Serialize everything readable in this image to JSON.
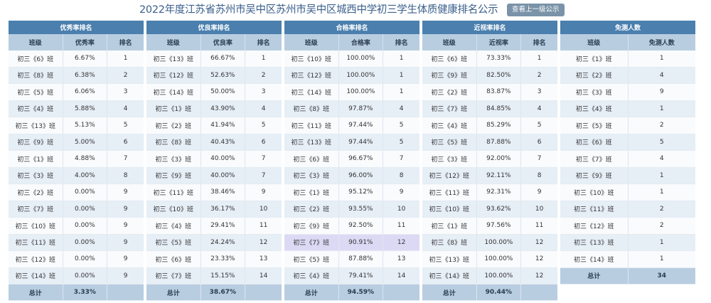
{
  "title": "2022年度江苏省苏州市吴中区苏州市吴中区城西中学初三学生体质健康排名公示",
  "up_button": "查看上一级公示",
  "panels": [
    {
      "title": "优秀率排名",
      "columns": [
        "班级",
        "优秀率",
        "排名"
      ],
      "rows": [
        [
          "初三《6》班",
          "6.67%",
          "1"
        ],
        [
          "初三《8》班",
          "6.38%",
          "2"
        ],
        [
          "初三《5》班",
          "6.06%",
          "3"
        ],
        [
          "初三《4》班",
          "5.88%",
          "4"
        ],
        [
          "初三《13》班",
          "5.13%",
          "5"
        ],
        [
          "初三《9》班",
          "5.00%",
          "6"
        ],
        [
          "初三《1》班",
          "4.88%",
          "7"
        ],
        [
          "初三《3》班",
          "4.00%",
          "8"
        ],
        [
          "初三《2》班",
          "0.00%",
          "9"
        ],
        [
          "初三《7》班",
          "0.00%",
          "9"
        ],
        [
          "初三《10》班",
          "0.00%",
          "9"
        ],
        [
          "初三《11》班",
          "0.00%",
          "9"
        ],
        [
          "初三《12》班",
          "0.00%",
          "9"
        ],
        [
          "初三《14》班",
          "0.00%",
          "9"
        ]
      ],
      "total": [
        "总计",
        "3.33%",
        ""
      ]
    },
    {
      "title": "优良率排名",
      "columns": [
        "班级",
        "优良率",
        "排名"
      ],
      "rows": [
        [
          "初三《13》班",
          "66.67%",
          "1"
        ],
        [
          "初三《12》班",
          "52.63%",
          "2"
        ],
        [
          "初三《14》班",
          "50.00%",
          "3"
        ],
        [
          "初三《1》班",
          "43.90%",
          "4"
        ],
        [
          "初三《2》班",
          "41.94%",
          "5"
        ],
        [
          "初三《8》班",
          "40.43%",
          "6"
        ],
        [
          "初三《3》班",
          "40.00%",
          "7"
        ],
        [
          "初三《9》班",
          "40.00%",
          "7"
        ],
        [
          "初三《11》班",
          "38.46%",
          "9"
        ],
        [
          "初三《10》班",
          "36.17%",
          "10"
        ],
        [
          "初三《4》班",
          "29.41%",
          "11"
        ],
        [
          "初三《5》班",
          "24.24%",
          "12"
        ],
        [
          "初三《6》班",
          "23.33%",
          "13"
        ],
        [
          "初三《7》班",
          "15.15%",
          "14"
        ]
      ],
      "total": [
        "总计",
        "38.67%",
        ""
      ]
    },
    {
      "title": "合格率排名",
      "columns": [
        "班级",
        "合格率",
        "排名"
      ],
      "rows": [
        [
          "初三《10》班",
          "100.00%",
          "1"
        ],
        [
          "初三《12》班",
          "100.00%",
          "1"
        ],
        [
          "初三《14》班",
          "100.00%",
          "1"
        ],
        [
          "初三《8》班",
          "97.87%",
          "4"
        ],
        [
          "初三《11》班",
          "97.44%",
          "5"
        ],
        [
          "初三《13》班",
          "97.44%",
          "5"
        ],
        [
          "初三《6》班",
          "96.67%",
          "7"
        ],
        [
          "初三《3》班",
          "96.00%",
          "8"
        ],
        [
          "初三《1》班",
          "95.12%",
          "9"
        ],
        [
          "初三《2》班",
          "93.55%",
          "10"
        ],
        [
          "初三《9》班",
          "92.50%",
          "11"
        ],
        [
          "初三《7》班",
          "90.91%",
          "12"
        ],
        [
          "初三《5》班",
          "87.88%",
          "13"
        ],
        [
          "初三《4》班",
          "79.41%",
          "14"
        ]
      ],
      "highlight_row": 11,
      "total": [
        "总计",
        "94.59%",
        ""
      ]
    },
    {
      "title": "近视率排名",
      "columns": [
        "班级",
        "近视率",
        "排名"
      ],
      "rows": [
        [
          "初三《6》班",
          "73.33%",
          "1"
        ],
        [
          "初三《9》班",
          "82.50%",
          "2"
        ],
        [
          "初三《2》班",
          "83.87%",
          "3"
        ],
        [
          "初三《7》班",
          "84.85%",
          "4"
        ],
        [
          "初三《4》班",
          "85.29%",
          "5"
        ],
        [
          "初三《5》班",
          "87.88%",
          "6"
        ],
        [
          "初三《3》班",
          "92.00%",
          "7"
        ],
        [
          "初三《12》班",
          "92.11%",
          "8"
        ],
        [
          "初三《11》班",
          "92.31%",
          "9"
        ],
        [
          "初三《10》班",
          "93.62%",
          "10"
        ],
        [
          "初三《1》班",
          "97.56%",
          "11"
        ],
        [
          "初三《8》班",
          "100.00%",
          "12"
        ],
        [
          "初三《13》班",
          "100.00%",
          "12"
        ],
        [
          "初三《14》班",
          "100.00%",
          "12"
        ]
      ],
      "total": [
        "总计",
        "90.44%",
        ""
      ]
    },
    {
      "title": "免测人数",
      "columns": [
        "班级",
        "免测人数"
      ],
      "rows": [
        [
          "初三《1》班",
          "1"
        ],
        [
          "初三《2》班",
          "4"
        ],
        [
          "初三《3》班",
          "9"
        ],
        [
          "初三《4》班",
          "1"
        ],
        [
          "初三《5》班",
          "2"
        ],
        [
          "初三《6》班",
          "5"
        ],
        [
          "初三《7》班",
          "4"
        ],
        [
          "初三《9》班",
          "1"
        ],
        [
          "初三《10》班",
          "1"
        ],
        [
          "初三《11》班",
          "2"
        ],
        [
          "初三《12》班",
          "2"
        ],
        [
          "初三《13》班",
          "1"
        ],
        [
          "初三《14》班",
          "1"
        ]
      ],
      "total": [
        "总计",
        "34"
      ]
    }
  ]
}
